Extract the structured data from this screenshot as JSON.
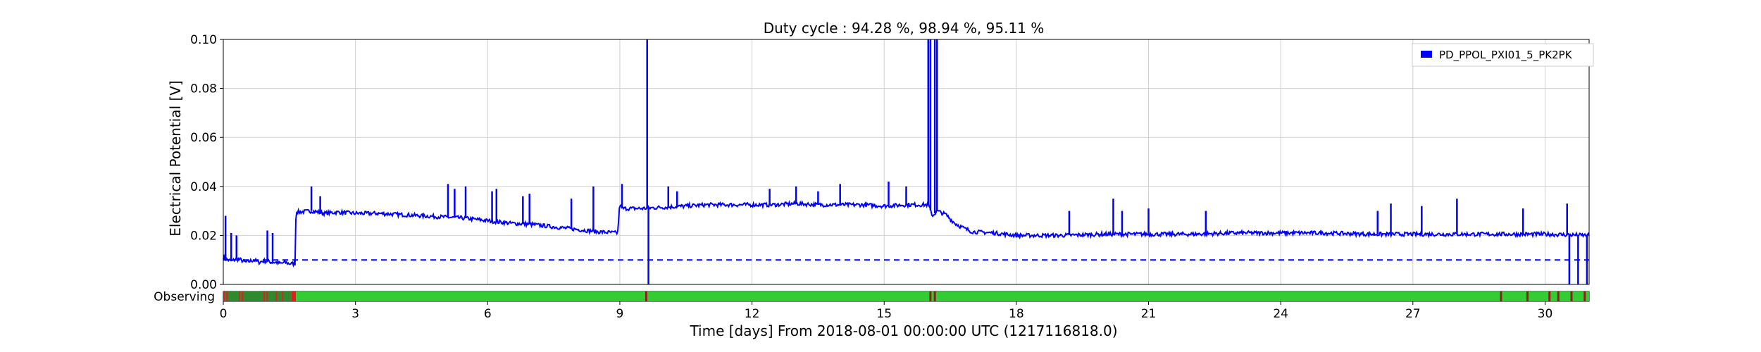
{
  "chart_data": {
    "type": "line",
    "title": "Duty cycle : 94.28 %, 98.94 %, 95.11 %",
    "xlabel": "Time [days] From 2018-08-01 00:00:00 UTC (1217116818.0)",
    "ylabel": "Electrical Potential [V]",
    "xlim": [
      0,
      31
    ],
    "ylim": [
      0,
      0.1
    ],
    "xticks": [
      0,
      3,
      6,
      9,
      12,
      15,
      18,
      21,
      24,
      27,
      30
    ],
    "xtick_labels": [
      "0",
      "3",
      "6",
      "9",
      "12",
      "15",
      "18",
      "21",
      "24",
      "27",
      "30"
    ],
    "yticks": [
      0.0,
      0.02,
      0.04,
      0.06,
      0.08,
      0.1
    ],
    "ytick_labels": [
      "0.00",
      "0.02",
      "0.04",
      "0.06",
      "0.08",
      "0.10"
    ],
    "grid": true,
    "legend_position": "top-right",
    "threshold": 0.01,
    "series": [
      {
        "name": "PD_PPOL_PXI01_5_PK2PK",
        "color": "#0000ff",
        "x": [
          0,
          0.1,
          0.2,
          0.3,
          0.4,
          0.5,
          0.6,
          0.7,
          0.8,
          0.9,
          1.0,
          1.1,
          1.2,
          1.3,
          1.4,
          1.5,
          1.6,
          1.63,
          1.65,
          1.7,
          2.0,
          2.3,
          2.6,
          3.0,
          3.5,
          4.0,
          4.5,
          5.0,
          5.5,
          6.0,
          6.5,
          7.0,
          7.5,
          8.0,
          8.5,
          8.95,
          9.0,
          9.05,
          9.5,
          10.0,
          10.5,
          11.0,
          11.5,
          12.0,
          12.5,
          13.0,
          13.5,
          14.0,
          14.5,
          15.0,
          15.5,
          16.0,
          16.1,
          16.2,
          16.4,
          16.6,
          16.8,
          17.0,
          17.5,
          18.0,
          18.5,
          19.0,
          20.0,
          21.0,
          22.0,
          23.0,
          24.0,
          25.0,
          26.0,
          27.0,
          28.0,
          29.0,
          30.0,
          31.0
        ],
        "y": [
          0.011,
          0.01,
          0.0095,
          0.0105,
          0.01,
          0.009,
          0.0095,
          0.01,
          0.009,
          0.0095,
          0.0095,
          0.009,
          0.009,
          0.0085,
          0.009,
          0.0085,
          0.0085,
          0.0085,
          0.03,
          0.0295,
          0.03,
          0.029,
          0.0295,
          0.029,
          0.029,
          0.0285,
          0.028,
          0.0275,
          0.027,
          0.026,
          0.025,
          0.0245,
          0.0235,
          0.0225,
          0.0215,
          0.021,
          0.033,
          0.031,
          0.031,
          0.0315,
          0.032,
          0.0325,
          0.0325,
          0.0325,
          0.0325,
          0.033,
          0.0325,
          0.0325,
          0.0325,
          0.032,
          0.0325,
          0.0325,
          0.028,
          0.03,
          0.0285,
          0.025,
          0.023,
          0.0215,
          0.021,
          0.02,
          0.02,
          0.02,
          0.0205,
          0.0205,
          0.0205,
          0.021,
          0.021,
          0.021,
          0.0205,
          0.0205,
          0.0205,
          0.0205,
          0.0205,
          0.02
        ]
      }
    ],
    "spikes": [
      {
        "x": 0.05,
        "y": 0.028
      },
      {
        "x": 0.18,
        "y": 0.021
      },
      {
        "x": 0.3,
        "y": 0.02
      },
      {
        "x": 1.0,
        "y": 0.022
      },
      {
        "x": 1.12,
        "y": 0.021
      },
      {
        "x": 2.0,
        "y": 0.04
      },
      {
        "x": 2.2,
        "y": 0.036
      },
      {
        "x": 5.1,
        "y": 0.041
      },
      {
        "x": 5.25,
        "y": 0.039
      },
      {
        "x": 5.5,
        "y": 0.04
      },
      {
        "x": 6.1,
        "y": 0.038
      },
      {
        "x": 6.2,
        "y": 0.039
      },
      {
        "x": 6.8,
        "y": 0.036
      },
      {
        "x": 6.95,
        "y": 0.037
      },
      {
        "x": 7.9,
        "y": 0.035
      },
      {
        "x": 8.4,
        "y": 0.04
      },
      {
        "x": 9.05,
        "y": 0.041
      },
      {
        "x": 9.62,
        "y": 0.1
      },
      {
        "x": 10.1,
        "y": 0.04
      },
      {
        "x": 10.3,
        "y": 0.038
      },
      {
        "x": 12.4,
        "y": 0.039
      },
      {
        "x": 13.0,
        "y": 0.04
      },
      {
        "x": 13.5,
        "y": 0.038
      },
      {
        "x": 14.0,
        "y": 0.041
      },
      {
        "x": 15.1,
        "y": 0.042
      },
      {
        "x": 15.5,
        "y": 0.04
      },
      {
        "x": 16.0,
        "y": 0.1
      },
      {
        "x": 16.05,
        "y": 0.1
      },
      {
        "x": 16.15,
        "y": 0.1
      },
      {
        "x": 16.2,
        "y": 0.1
      },
      {
        "x": 19.2,
        "y": 0.03
      },
      {
        "x": 20.2,
        "y": 0.035
      },
      {
        "x": 20.4,
        "y": 0.03
      },
      {
        "x": 21.0,
        "y": 0.031
      },
      {
        "x": 22.3,
        "y": 0.03
      },
      {
        "x": 26.2,
        "y": 0.03
      },
      {
        "x": 26.5,
        "y": 0.033
      },
      {
        "x": 27.2,
        "y": 0.032
      },
      {
        "x": 28.0,
        "y": 0.035
      },
      {
        "x": 29.5,
        "y": 0.031
      },
      {
        "x": 30.5,
        "y": 0.033
      }
    ],
    "dips": [
      {
        "x": 9.65,
        "y": 0.0
      },
      {
        "x": 30.55,
        "y": 0.0
      },
      {
        "x": 30.75,
        "y": 0.0
      },
      {
        "x": 30.95,
        "y": 0.0
      }
    ],
    "state_bar": {
      "label": "Observing",
      "ok_color": "#33cc33",
      "off_color": "#e02020",
      "segments": [
        {
          "start": 0,
          "end": 1.55,
          "state": "mixed"
        },
        {
          "start": 1.55,
          "end": 1.65,
          "state": "off"
        },
        {
          "start": 1.65,
          "end": 31,
          "state": "observing"
        }
      ],
      "marks": [
        9.6,
        16.05,
        16.15,
        29.0,
        29.6,
        30.1,
        30.3,
        30.6,
        30.9
      ]
    }
  }
}
